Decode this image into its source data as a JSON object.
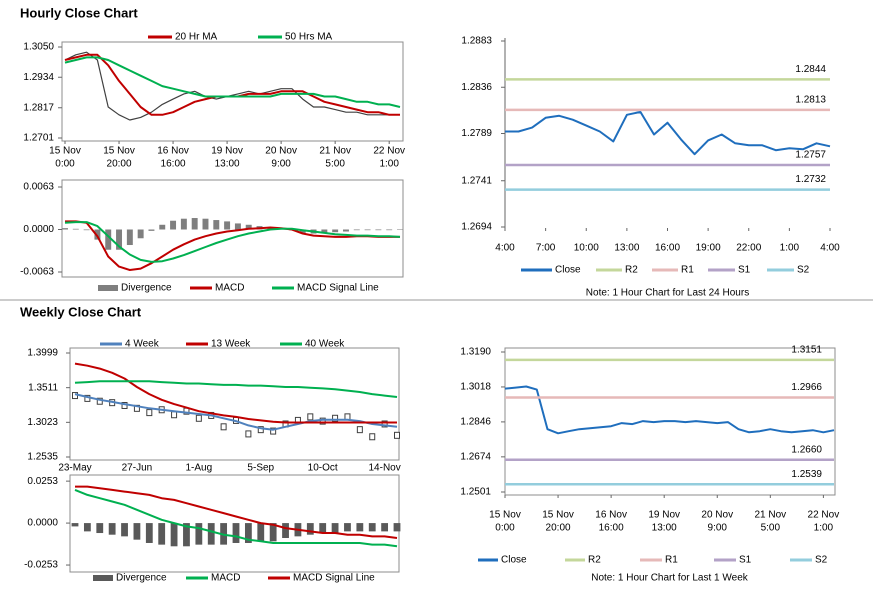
{
  "sections": [
    {
      "title": "Hourly Close Chart"
    },
    {
      "title": "Weekly Close Chart"
    }
  ],
  "chart_data": [
    {
      "type": "line",
      "x": [
        0,
        4,
        8,
        12,
        16,
        20,
        24,
        28,
        32,
        36,
        40,
        44,
        48,
        52,
        56,
        60,
        64,
        68,
        72,
        76,
        80,
        84,
        88,
        92,
        96,
        100,
        104,
        108,
        112,
        116,
        120,
        124
      ],
      "xlim": [
        0,
        124
      ],
      "xticks": [
        {
          "value": 0,
          "label": [
            "15 Nov",
            "0:00"
          ]
        },
        {
          "value": 20,
          "label": [
            "15 Nov",
            "20:00"
          ]
        },
        {
          "value": 40,
          "label": [
            "16 Nov",
            "16:00"
          ]
        },
        {
          "value": 60,
          "label": [
            "19 Nov",
            "13:00"
          ]
        },
        {
          "value": 80,
          "label": [
            "20 Nov",
            "9:00"
          ]
        },
        {
          "value": 100,
          "label": [
            "21 Nov",
            "5:00"
          ]
        },
        {
          "value": 120,
          "label": [
            "22 Nov",
            "1:00"
          ]
        }
      ],
      "ylim": [
        1.2701,
        1.305
      ],
      "yticks": [
        {
          "value": 1.305,
          "label": "1.3050"
        },
        1.2934,
        1.2817,
        1.2701
      ],
      "series": [
        {
          "color": "#404040",
          "values": [
            1.3,
            1.302,
            1.303,
            1.3,
            1.282,
            1.279,
            1.277,
            1.278,
            1.28,
            1.283,
            1.285,
            1.287,
            1.288,
            1.286,
            1.285,
            1.286,
            1.287,
            1.288,
            1.287,
            1.288,
            1.289,
            1.289,
            1.285,
            1.282,
            1.282,
            1.281,
            1.28,
            1.28,
            1.279,
            1.279,
            1.279,
            1.279
          ]
        },
        {
          "name": "20 Hr MA",
          "color": "#c00000",
          "values": [
            1.3,
            1.301,
            1.302,
            1.302,
            1.298,
            1.292,
            1.287,
            1.282,
            1.279,
            1.279,
            1.28,
            1.282,
            1.284,
            1.285,
            1.286,
            1.286,
            1.286,
            1.287,
            1.287,
            1.287,
            1.288,
            1.288,
            1.288,
            1.286,
            1.284,
            1.283,
            1.282,
            1.281,
            1.28,
            1.28,
            1.279,
            1.279
          ]
        },
        {
          "name": "50 Hrs MA",
          "color": "#00b050",
          "values": [
            1.299,
            1.3,
            1.301,
            1.301,
            1.3,
            1.298,
            1.296,
            1.294,
            1.292,
            1.29,
            1.289,
            1.288,
            1.287,
            1.286,
            1.286,
            1.286,
            1.286,
            1.286,
            1.286,
            1.286,
            1.287,
            1.287,
            1.287,
            1.287,
            1.286,
            1.286,
            1.285,
            1.284,
            1.284,
            1.283,
            1.283,
            1.282
          ]
        }
      ]
    },
    {
      "type": "bar",
      "ylim": [
        -0.0063,
        0.0063
      ],
      "yticks": [
        0.0063,
        {
          "value": 0,
          "label": "0.0000"
        },
        -0.0063
      ],
      "series": [
        {
          "name": "Divergence",
          "type": "bar",
          "color": "#7f7f7f",
          "values": [
            0.0002,
            0.0001,
            -0.0001,
            -0.0015,
            -0.003,
            -0.003,
            -0.0023,
            -0.0013,
            -0.0002,
            0.0007,
            0.0013,
            0.0016,
            0.0017,
            0.0016,
            0.0014,
            0.0012,
            0.0009,
            0.0007,
            0.0005,
            0.0003,
            0.0001,
            -0.0001,
            -0.0005,
            -0.0006,
            -0.0005,
            -0.0004,
            -0.0003,
            -0.0001,
            -0.0001,
            -0.0001,
            -0.0001,
            0
          ]
        },
        {
          "name": "MACD",
          "color": "#c00000",
          "values": [
            0.0012,
            0.0012,
            0.001,
            -0.001,
            -0.004,
            -0.0055,
            -0.006,
            -0.0058,
            -0.005,
            -0.004,
            -0.003,
            -0.0022,
            -0.0015,
            -0.001,
            -0.0006,
            -0.0003,
            -0.0001,
            0.0001,
            0.0002,
            0.0003,
            0.0002,
            0,
            -0.0006,
            -0.0009,
            -0.001,
            -0.0011,
            -0.0011,
            -0.001,
            -0.001,
            -0.0011,
            -0.0011,
            -0.0011
          ]
        },
        {
          "name": "MACD Signal Line",
          "color": "#00b050",
          "values": [
            0.001,
            0.0011,
            0.0011,
            0.0005,
            -0.001,
            -0.0025,
            -0.0037,
            -0.0045,
            -0.0048,
            -0.0047,
            -0.0043,
            -0.0038,
            -0.0032,
            -0.0026,
            -0.002,
            -0.0015,
            -0.001,
            -0.0006,
            -0.0003,
            0,
            0.0001,
            0.0001,
            -0.0001,
            -0.0003,
            -0.0005,
            -0.0007,
            -0.0008,
            -0.0009,
            -0.0009,
            -0.001,
            -0.001,
            -0.0011
          ]
        }
      ]
    },
    {
      "type": "line",
      "note": "Note: 1 Hour Chart for Last 24 Hours",
      "x": [
        0,
        1,
        2,
        3,
        4,
        5,
        6,
        7,
        8,
        9,
        10,
        11,
        12,
        13,
        14,
        15,
        16,
        17,
        18,
        19,
        20,
        21,
        22,
        23,
        24
      ],
      "xlim": [
        0,
        24
      ],
      "xticks": [
        {
          "value": 0,
          "label": "4:00"
        },
        {
          "value": 3,
          "label": "7:00"
        },
        {
          "value": 6,
          "label": "10:00"
        },
        {
          "value": 9,
          "label": "13:00"
        },
        {
          "value": 12,
          "label": "16:00"
        },
        {
          "value": 15,
          "label": "19:00"
        },
        {
          "value": 18,
          "label": "22:00"
        },
        {
          "value": 21,
          "label": "1:00"
        },
        {
          "value": 24,
          "label": "4:00"
        }
      ],
      "ylim": [
        1.2694,
        1.2883
      ],
      "yticks": [
        1.2883,
        1.2836,
        1.2789,
        1.2741,
        1.2694
      ],
      "series": [
        {
          "name": "Close",
          "color": "#1f6ebd",
          "values": [
            1.2791,
            1.2791,
            1.2795,
            1.2805,
            1.2807,
            1.2803,
            1.2797,
            1.2791,
            1.2781,
            1.2808,
            1.2811,
            1.2788,
            1.28,
            1.2783,
            1.2768,
            1.2782,
            1.2788,
            1.2779,
            1.2777,
            1.2777,
            1.2772,
            1.2774,
            1.2773,
            1.2779,
            1.2776
          ]
        },
        {
          "name": "R2",
          "type": "level",
          "color": "#c4d79b",
          "value": 1.2844
        },
        {
          "name": "R1",
          "type": "level",
          "color": "#e6b9b8",
          "value": 1.2813
        },
        {
          "name": "S1",
          "type": "level",
          "color": "#b3a2c7",
          "value": 1.2757
        },
        {
          "name": "S2",
          "type": "level",
          "color": "#93cddd",
          "value": 1.2732
        }
      ]
    },
    {
      "type": "line",
      "categories": [
        "23-May",
        null,
        null,
        null,
        null,
        "27-Jun",
        null,
        null,
        null,
        null,
        "1-Aug",
        null,
        null,
        null,
        null,
        "5-Sep",
        null,
        null,
        null,
        null,
        "10-Oct",
        null,
        null,
        null,
        null,
        "14-Nov",
        null
      ],
      "ylim": [
        1.2535,
        1.3999
      ],
      "yticks": [
        1.3999,
        1.3511,
        1.3023,
        1.2535
      ],
      "series": [
        {
          "type": "candle",
          "color": "#404040",
          "values": [
            1.34,
            1.336,
            1.332,
            1.33,
            1.326,
            1.322,
            1.316,
            1.32,
            1.313,
            1.318,
            1.308,
            1.312,
            1.296,
            1.305,
            1.286,
            1.292,
            1.29,
            1.3,
            1.305,
            1.31,
            1.304,
            1.308,
            1.31,
            1.292,
            1.282,
            1.3,
            1.284
          ]
        },
        {
          "name": "4 Week",
          "color": "#4f81bd",
          "values": [
            1.342,
            1.338,
            1.334,
            1.331,
            1.328,
            1.325,
            1.322,
            1.32,
            1.318,
            1.316,
            1.314,
            1.312,
            1.308,
            1.304,
            1.298,
            1.294,
            1.292,
            1.296,
            1.3,
            1.304,
            1.306,
            1.306,
            1.306,
            1.304,
            1.3,
            1.298,
            1.296
          ]
        },
        {
          "name": "13 Week",
          "color": "#c00000",
          "values": [
            1.385,
            1.382,
            1.378,
            1.372,
            1.364,
            1.352,
            1.342,
            1.334,
            1.328,
            1.323,
            1.318,
            1.315,
            1.312,
            1.31,
            1.307,
            1.305,
            1.303,
            1.302,
            1.302,
            1.302,
            1.302,
            1.302,
            1.302,
            1.302,
            1.302,
            1.302,
            1.302
          ]
        },
        {
          "name": "40 Week",
          "color": "#00b050",
          "values": [
            1.358,
            1.359,
            1.36,
            1.36,
            1.36,
            1.36,
            1.36,
            1.359,
            1.358,
            1.357,
            1.357,
            1.356,
            1.355,
            1.355,
            1.354,
            1.354,
            1.353,
            1.352,
            1.352,
            1.351,
            1.35,
            1.349,
            1.347,
            1.345,
            1.342,
            1.34,
            1.338
          ]
        }
      ]
    },
    {
      "type": "bar",
      "ylim": [
        -0.0295,
        0.029
      ],
      "yticks": [
        0.0253,
        {
          "value": 0,
          "label": "0.0000"
        },
        -0.0253
      ],
      "series": [
        {
          "name": "Divergence",
          "type": "bar",
          "color": "#595959",
          "values": [
            -0.002,
            -0.005,
            -0.006,
            -0.007,
            -0.008,
            -0.01,
            -0.012,
            -0.013,
            -0.014,
            -0.014,
            -0.013,
            -0.013,
            -0.013,
            -0.012,
            -0.012,
            -0.011,
            -0.011,
            -0.009,
            -0.008,
            -0.007,
            -0.006,
            -0.006,
            -0.005,
            -0.005,
            -0.005,
            -0.005,
            -0.005
          ]
        },
        {
          "name": "MACD",
          "color": "#00b050",
          "values": [
            0.02,
            0.017,
            0.015,
            0.013,
            0.011,
            0.008,
            0.005,
            0.002,
            0,
            -0.002,
            -0.003,
            -0.005,
            -0.007,
            -0.008,
            -0.01,
            -0.011,
            -0.012,
            -0.012,
            -0.012,
            -0.012,
            -0.012,
            -0.012,
            -0.012,
            -0.012,
            -0.013,
            -0.013,
            -0.014
          ]
        },
        {
          "name": "MACD Signal Line",
          "color": "#c00000",
          "values": [
            0.022,
            0.022,
            0.021,
            0.02,
            0.019,
            0.018,
            0.017,
            0.015,
            0.014,
            0.012,
            0.01,
            0.008,
            0.006,
            0.004,
            0.002,
            0,
            -0.001,
            -0.003,
            -0.004,
            -0.005,
            -0.006,
            -0.006,
            -0.007,
            -0.007,
            -0.008,
            -0.008,
            -0.009
          ]
        }
      ]
    },
    {
      "type": "line",
      "note": "Note: 1 Hour Chart for Last 1 Week",
      "x": [
        0,
        4,
        8,
        12,
        16,
        20,
        24,
        28,
        32,
        36,
        40,
        44,
        48,
        52,
        56,
        60,
        64,
        68,
        72,
        76,
        80,
        84,
        88,
        92,
        96,
        100,
        104,
        108,
        112,
        116,
        120,
        124
      ],
      "xlim": [
        0,
        124
      ],
      "xticks": [
        {
          "value": 0,
          "label": [
            "15 Nov",
            "0:00"
          ]
        },
        {
          "value": 20,
          "label": [
            "15 Nov",
            "20:00"
          ]
        },
        {
          "value": 40,
          "label": [
            "16 Nov",
            "16:00"
          ]
        },
        {
          "value": 60,
          "label": [
            "19 Nov",
            "13:00"
          ]
        },
        {
          "value": 80,
          "label": [
            "20 Nov",
            "9:00"
          ]
        },
        {
          "value": 100,
          "label": [
            "21 Nov",
            "5:00"
          ]
        },
        {
          "value": 120,
          "label": [
            "22 Nov",
            "1:00"
          ]
        }
      ],
      "ylim": [
        1.2501,
        1.319
      ],
      "yticks": [
        {
          "value": 1.319,
          "label": "1.3190"
        },
        1.3018,
        1.2846,
        1.2674,
        1.2501
      ],
      "series": [
        {
          "name": "Close",
          "color": "#1f6ebd",
          "values": [
            1.301,
            1.3015,
            1.302,
            1.3005,
            1.281,
            1.279,
            1.28,
            1.281,
            1.2815,
            1.282,
            1.2825,
            1.284,
            1.2835,
            1.285,
            1.2845,
            1.285,
            1.285,
            1.2845,
            1.285,
            1.2845,
            1.284,
            1.2845,
            1.281,
            1.2795,
            1.28,
            1.281,
            1.28,
            1.2795,
            1.28,
            1.2805,
            1.2795,
            1.2805
          ]
        },
        {
          "name": "R2",
          "type": "level",
          "color": "#c4d79b",
          "value": 1.3151
        },
        {
          "name": "R1",
          "type": "level",
          "color": "#e6b9b8",
          "value": 1.2966
        },
        {
          "name": "S1",
          "type": "level",
          "color": "#b3a2c7",
          "value": 1.266,
          "value_label": "1.2660"
        },
        {
          "name": "S2",
          "type": "level",
          "color": "#93cddd",
          "value": 1.2539
        }
      ]
    }
  ]
}
